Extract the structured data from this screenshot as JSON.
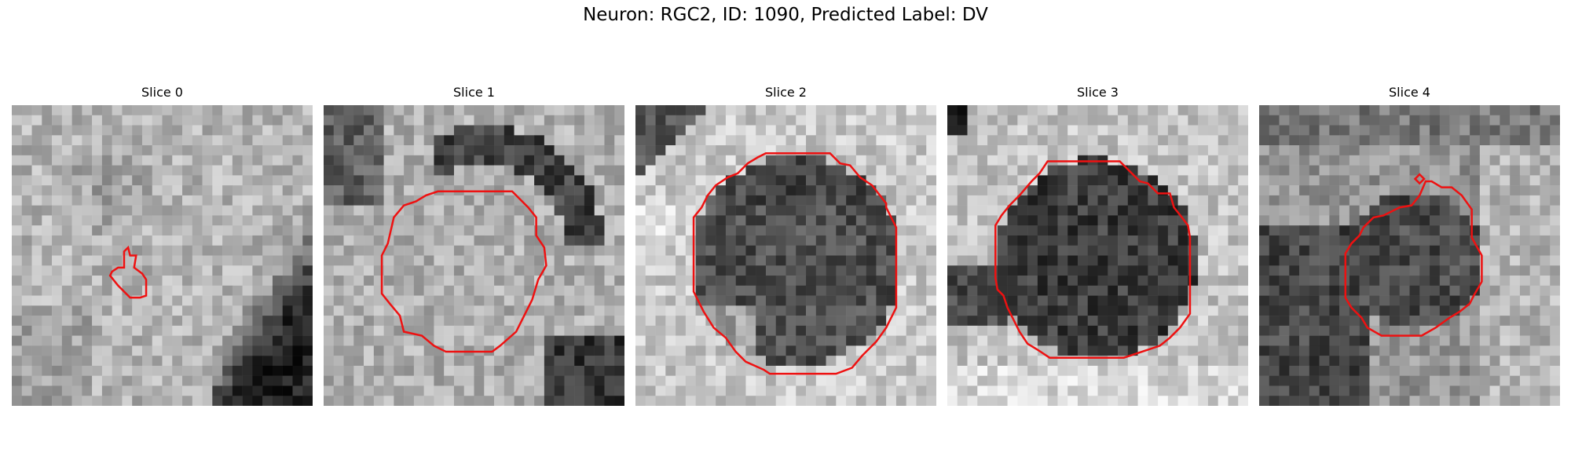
{
  "figure": {
    "title": "Neuron: RGC2, ID: 1090, Predicted Label: DV"
  },
  "panels": [
    {
      "title": "Slice 0",
      "texture": "bright-noise-dark-bottom-right-corner",
      "contour": "small-blob"
    },
    {
      "title": "Slice 1",
      "texture": "bright-noise-dark-arc-top",
      "contour": "octagon-medium"
    },
    {
      "title": "Slice 2",
      "texture": "dark-round-cell-body",
      "contour": "octagon-large"
    },
    {
      "title": "Slice 3",
      "texture": "dark-round-cell-body-left-arm",
      "contour": "octagon-large"
    },
    {
      "title": "Slice 4",
      "texture": "dark-noisy-left-region",
      "contour": "irregular-with-dot"
    }
  ],
  "colors": {
    "contour": "#ee1111",
    "background": "#ffffff"
  }
}
